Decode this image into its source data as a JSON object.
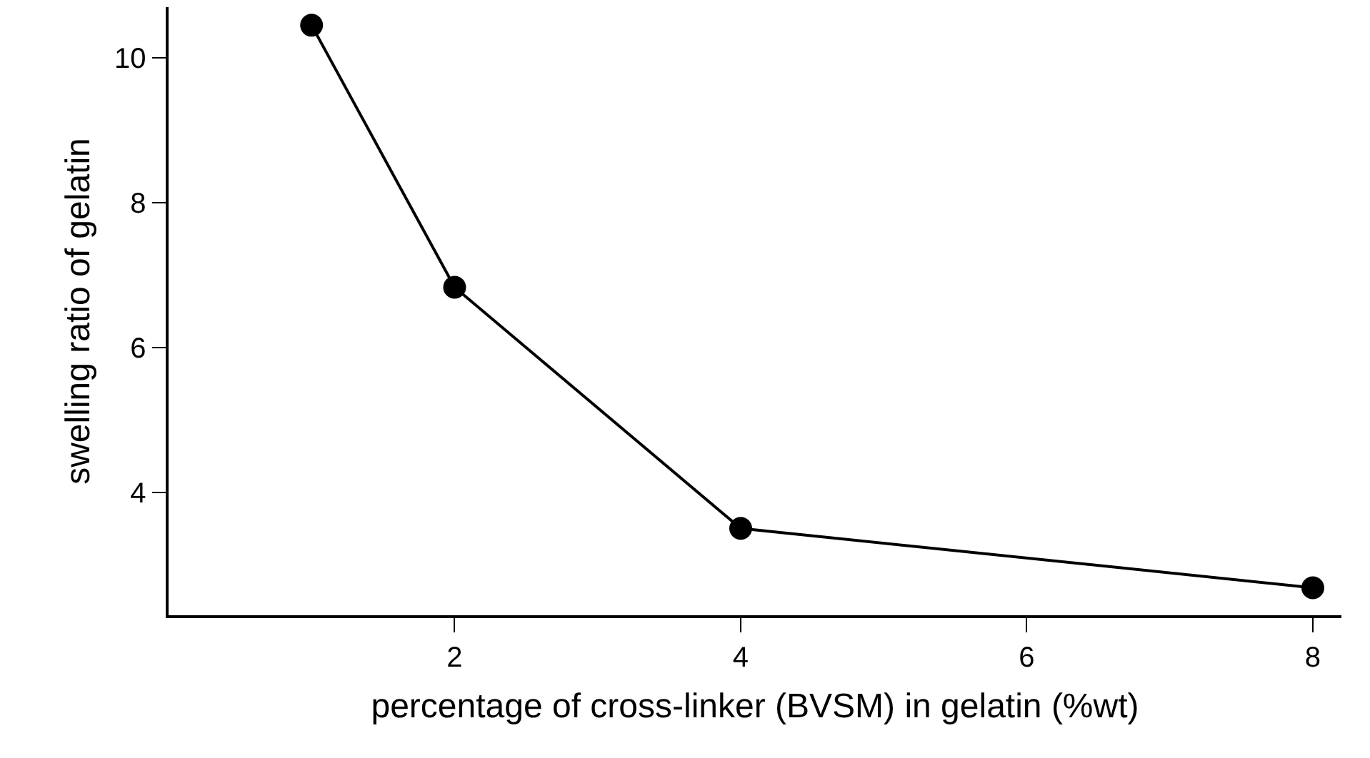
{
  "chart_data": {
    "type": "line",
    "xlabel": "percentage of cross-linker (BVSM) in gelatin (%wt)",
    "ylabel": "swelling ratio of gelatin",
    "x": [
      1,
      2,
      4,
      8
    ],
    "series": [
      {
        "color": "#000000",
        "values": [
          10.45,
          6.83,
          3.5,
          2.68
        ]
      }
    ],
    "xlim": [
      0,
      8.2
    ],
    "xticks": [
      2,
      4,
      6,
      8
    ],
    "ylim": [
      2.3,
      10.7
    ],
    "yticks": [
      4,
      6,
      8,
      10
    ],
    "grid": false,
    "marker": "circle",
    "line_style": "solid"
  }
}
